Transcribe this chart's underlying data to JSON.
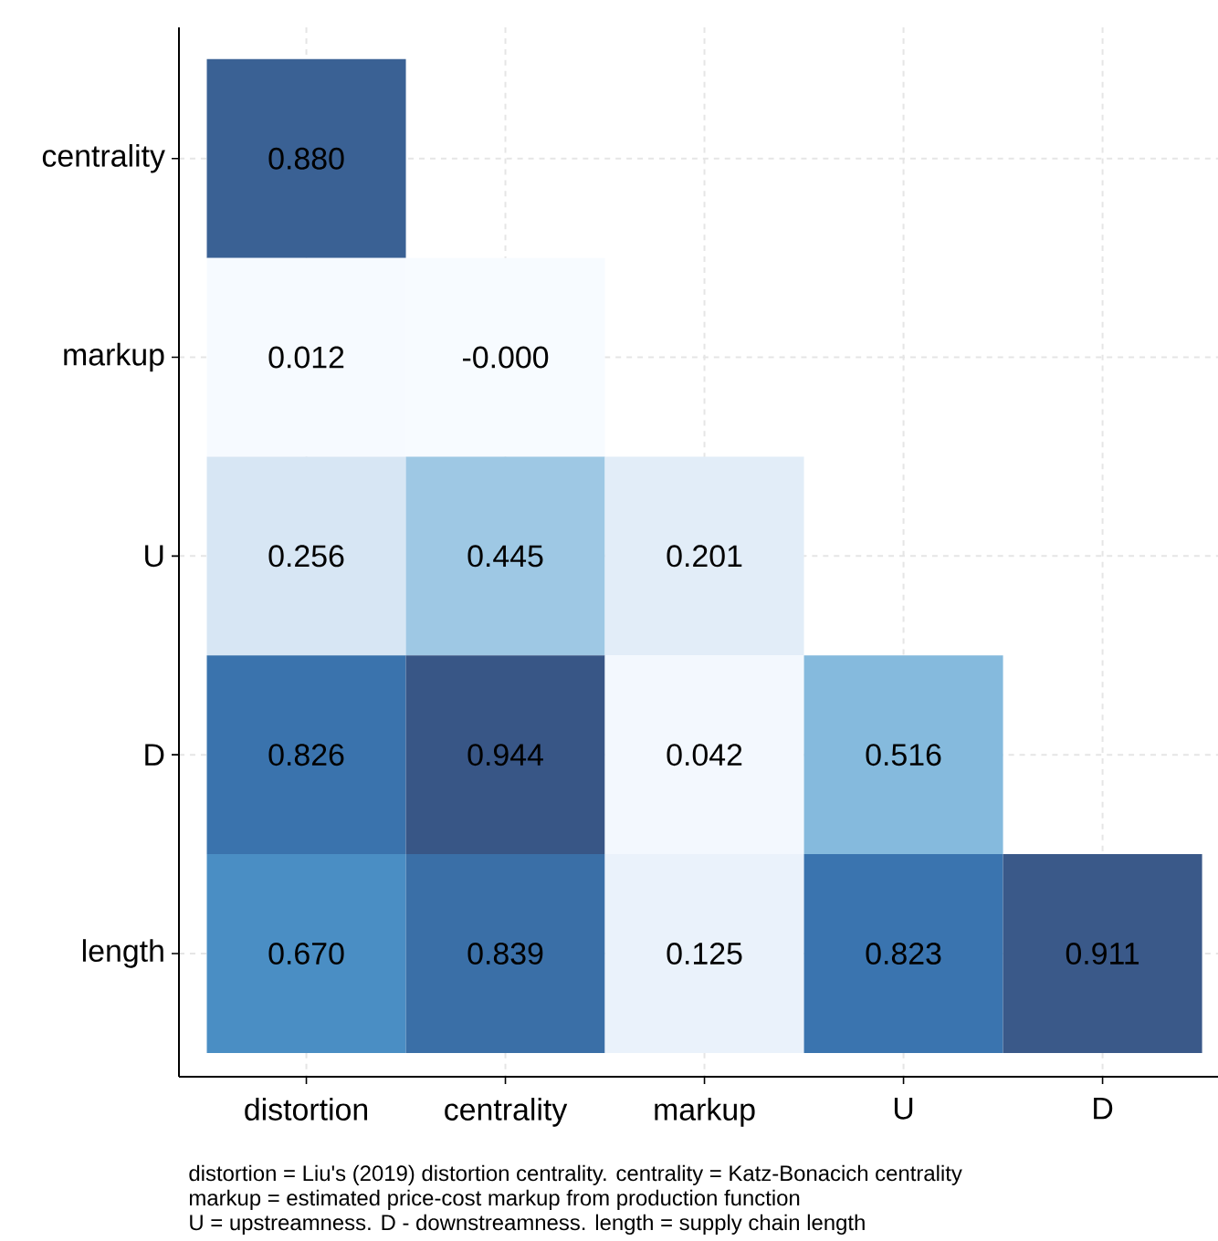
{
  "chart_data": {
    "type": "heatmap",
    "categories": [
      "distortion",
      "centrality",
      "markup",
      "U",
      "D"
    ],
    "y_categories": [
      "centrality",
      "markup",
      "U",
      "D",
      "length"
    ],
    "cells": [
      [
        0.88,
        null,
        null,
        null,
        null
      ],
      [
        0.012,
        -0.0,
        null,
        null,
        null
      ],
      [
        0.256,
        0.445,
        0.201,
        null,
        null
      ],
      [
        0.826,
        0.944,
        0.042,
        0.516,
        null
      ],
      [
        0.67,
        0.839,
        0.125,
        0.823,
        0.911
      ]
    ],
    "cell_labels": [
      [
        "0.880",
        null,
        null,
        null,
        null
      ],
      [
        "0.012",
        "-0.000",
        null,
        null,
        null
      ],
      [
        "0.256",
        "0.445",
        "0.201",
        null,
        null
      ],
      [
        "0.826",
        "0.944",
        "0.042",
        "0.516",
        null
      ],
      [
        "0.670",
        "0.839",
        "0.125",
        "0.823",
        "0.911"
      ]
    ],
    "grid": true,
    "annotations": [
      "distortion = Liu's (2019) distortion centrality. centrality = Katz-Bonacich centrality",
      "markup = estimated price-cost markup from production function",
      "U = upstreamness. D - downstreamness. length = supply chain length"
    ]
  }
}
